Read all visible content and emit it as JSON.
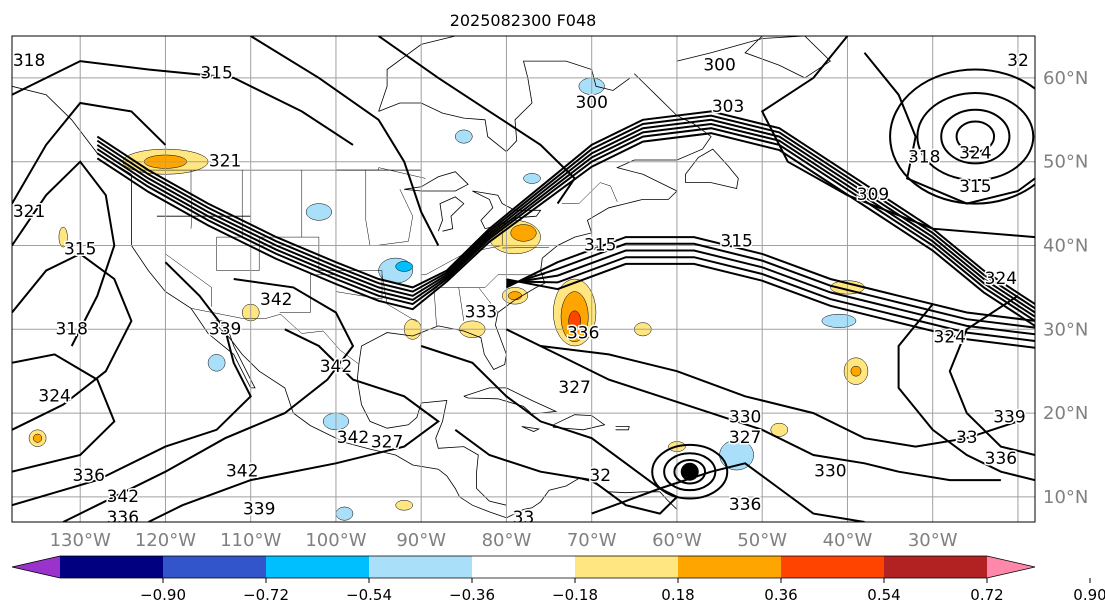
{
  "title": "2025082300 F048",
  "map": {
    "lon_range": [
      -138,
      -18
    ],
    "lat_range": [
      7,
      65
    ],
    "lon_ticks": [
      "130°W",
      "120°W",
      "110°W",
      "100°W",
      "90°W",
      "80°W",
      "70°W",
      "60°W",
      "50°W",
      "40°W",
      "30°W"
    ],
    "lat_ticks": [
      "10°N",
      "20°N",
      "30°N",
      "40°N",
      "50°N",
      "60°N"
    ],
    "grid": true,
    "contour_field": "isentropic / theta contours (black lines)",
    "contour_labels": [
      {
        "text": "318",
        "lon": -136,
        "lat": 62
      },
      {
        "text": "315",
        "lon": -114,
        "lat": 60.5
      },
      {
        "text": "321",
        "lon": -113,
        "lat": 50
      },
      {
        "text": "321",
        "lon": -136,
        "lat": 44
      },
      {
        "text": "315",
        "lon": -130,
        "lat": 39.5
      },
      {
        "text": "318",
        "lon": -131,
        "lat": 30
      },
      {
        "text": "324",
        "lon": -133,
        "lat": 22
      },
      {
        "text": "342",
        "lon": -107,
        "lat": 33.5
      },
      {
        "text": "339",
        "lon": -113,
        "lat": 30
      },
      {
        "text": "342",
        "lon": -100,
        "lat": 25.5
      },
      {
        "text": "342",
        "lon": -98,
        "lat": 17
      },
      {
        "text": "327",
        "lon": -94,
        "lat": 16.5
      },
      {
        "text": "342",
        "lon": -111,
        "lat": 13
      },
      {
        "text": "342",
        "lon": -125,
        "lat": 10
      },
      {
        "text": "336",
        "lon": -125,
        "lat": 7.5
      },
      {
        "text": "339",
        "lon": -109,
        "lat": 8.5
      },
      {
        "text": "336",
        "lon": -129,
        "lat": 12.5
      },
      {
        "text": "300",
        "lon": -70,
        "lat": 57
      },
      {
        "text": "300",
        "lon": -55,
        "lat": 61.5
      },
      {
        "text": "303",
        "lon": -54,
        "lat": 56.5
      },
      {
        "text": "309",
        "lon": -37,
        "lat": 46
      },
      {
        "text": "315",
        "lon": -69,
        "lat": 40
      },
      {
        "text": "315",
        "lon": -53,
        "lat": 40.5
      },
      {
        "text": "318",
        "lon": -31,
        "lat": 50.5
      },
      {
        "text": "324",
        "lon": -25,
        "lat": 51
      },
      {
        "text": "315",
        "lon": -25,
        "lat": 47
      },
      {
        "text": "32",
        "lon": -20,
        "lat": 62
      },
      {
        "text": "324",
        "lon": -22,
        "lat": 36
      },
      {
        "text": "324",
        "lon": -28,
        "lat": 29
      },
      {
        "text": "333",
        "lon": -83,
        "lat": 32
      },
      {
        "text": "336",
        "lon": -71,
        "lat": 29.5
      },
      {
        "text": "327",
        "lon": -72,
        "lat": 23
      },
      {
        "text": "330",
        "lon": -52,
        "lat": 19.5
      },
      {
        "text": "327",
        "lon": -52,
        "lat": 17
      },
      {
        "text": "330",
        "lon": -42,
        "lat": 13
      },
      {
        "text": "336",
        "lon": -52,
        "lat": 9
      },
      {
        "text": "32",
        "lon": -69,
        "lat": 12.5
      },
      {
        "text": "339",
        "lon": -21,
        "lat": 19.5
      },
      {
        "text": "336",
        "lon": -22,
        "lat": 14.5
      },
      {
        "text": "33",
        "lon": -26,
        "lat": 17
      },
      {
        "text": "33",
        "lon": -78,
        "lat": 7.5
      }
    ],
    "marker": {
      "type": "filled-circle",
      "lon": -58.5,
      "lat": 13
    }
  },
  "colorbar": {
    "colors": [
      "#9933cc",
      "#000080",
      "#3355cc",
      "#00bfff",
      "#aadff9",
      "#ffffff",
      "#ffe680",
      "#ffa500",
      "#ff4400",
      "#b22222",
      "#ff88aa"
    ],
    "ticks": [
      "−0.90",
      "−0.72",
      "−0.54",
      "−0.36",
      "−0.18",
      "0.18",
      "0.36",
      "0.54",
      "0.72",
      "0.90"
    ],
    "extend": "both"
  },
  "colors": {
    "axis_text": "#808080",
    "contour": "#000000",
    "grid": "#a0a0a0"
  }
}
